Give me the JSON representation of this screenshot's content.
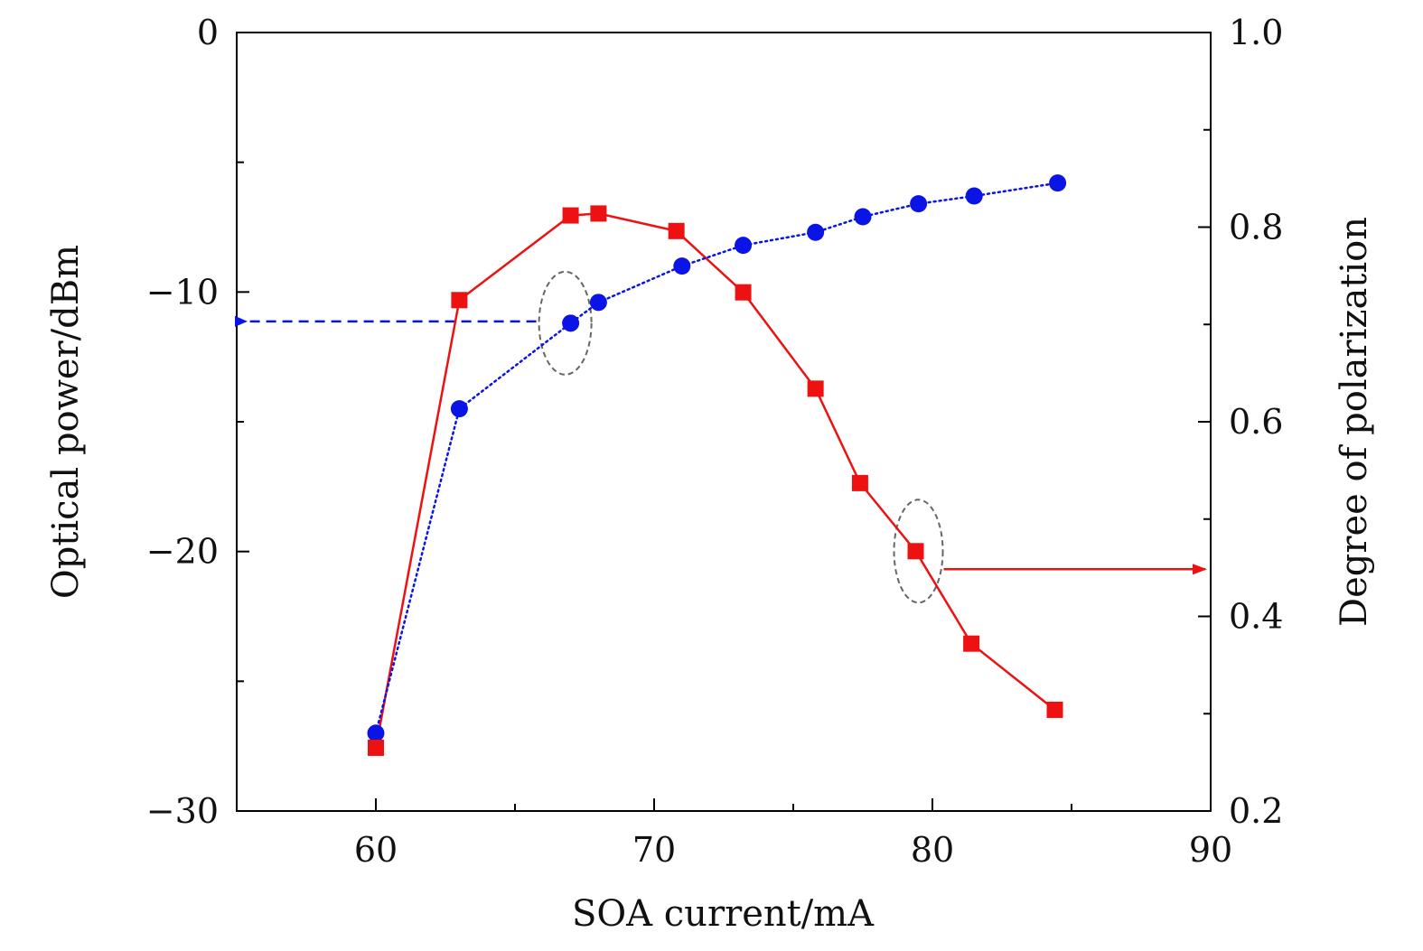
{
  "chart_data": {
    "type": "line",
    "title": "",
    "xlabel": "SOA current/mA",
    "ylabel": "Optical power/dBm",
    "y2label": "Degree of polarization",
    "xlim": [
      55,
      90
    ],
    "ylim": [
      -30,
      0
    ],
    "y2lim": [
      0.2,
      1.0
    ],
    "x_ticks": [
      60,
      70,
      80,
      90
    ],
    "y_ticks": [
      0,
      -10,
      -20,
      -30
    ],
    "y_tick_labels": [
      "0",
      "−10",
      "−20",
      "−30"
    ],
    "y2_ticks": [
      1.0,
      0.8,
      0.6,
      0.4,
      0.2
    ],
    "y2_tick_labels": [
      "1.0",
      "0.8",
      "0.6",
      "0.4",
      "0.2"
    ],
    "series": [
      {
        "name": "Optical power",
        "axis": "left",
        "color": "#0a14e6",
        "marker": "circle",
        "line_style": "dotted",
        "x": [
          60.0,
          63.0,
          67.0,
          68.0,
          71.0,
          73.2,
          75.8,
          77.5,
          79.5,
          81.5,
          84.5
        ],
        "y": [
          -27.0,
          -14.5,
          -11.2,
          -10.4,
          -9.0,
          -8.2,
          -7.7,
          -7.1,
          -6.6,
          -6.3,
          -5.8
        ]
      },
      {
        "name": "Degree of polarization",
        "axis": "right",
        "color": "#ee1111",
        "marker": "square",
        "line_style": "solid",
        "x": [
          60.0,
          63.0,
          67.0,
          68.0,
          70.8,
          73.2,
          75.8,
          77.4,
          79.4,
          81.4,
          84.4
        ],
        "y": [
          0.265,
          0.725,
          0.812,
          0.814,
          0.796,
          0.733,
          0.634,
          0.537,
          0.467,
          0.372,
          0.304
        ]
      }
    ],
    "annotations": [
      {
        "type": "ellipse-arrow",
        "series": "Optical power",
        "at_x": 67.0,
        "arrow_to": "left axis"
      },
      {
        "type": "ellipse-arrow",
        "series": "Degree of polarization",
        "at_x": 79.4,
        "arrow_to": "right axis"
      }
    ]
  }
}
